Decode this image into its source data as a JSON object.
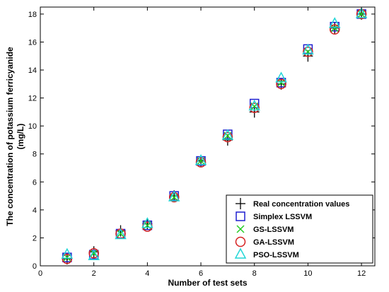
{
  "chart_data": {
    "type": "scatter",
    "title": "",
    "xlabel": "Number of test sets",
    "ylabel_line1": "The concentration of potassium ferricyanide",
    "ylabel_line2": "(mg/L)",
    "xlim": [
      0,
      12.5
    ],
    "ylim": [
      0,
      18.5
    ],
    "xticks": [
      0,
      2,
      4,
      6,
      8,
      10,
      12
    ],
    "yticks": [
      0,
      2,
      4,
      6,
      8,
      10,
      12,
      14,
      16,
      18
    ],
    "grid": false,
    "legend_position": "bottom-right",
    "x": [
      1,
      2,
      3,
      4,
      5,
      6,
      7,
      8,
      9,
      10,
      11,
      12
    ],
    "series": [
      {
        "name": "Real concentration values",
        "marker": "plus",
        "color": "#000000",
        "values": [
          0.5,
          1.0,
          2.5,
          3.0,
          5.0,
          7.5,
          9.0,
          11.0,
          13.0,
          15.0,
          17.0,
          18.0
        ]
      },
      {
        "name": "Simplex LSSVM",
        "marker": "square",
        "color": "#1f1fd0",
        "values": [
          0.6,
          0.8,
          2.3,
          2.9,
          5.0,
          7.5,
          9.4,
          11.6,
          13.1,
          15.5,
          17.1,
          18.0
        ]
      },
      {
        "name": "GS-LSSVM",
        "marker": "x",
        "color": "#22cc22",
        "values": [
          0.6,
          0.9,
          2.3,
          2.9,
          4.9,
          7.5,
          9.3,
          11.4,
          13.1,
          15.3,
          17.0,
          18.0
        ]
      },
      {
        "name": "GA-LSSVM",
        "marker": "circle",
        "color": "#d42020",
        "values": [
          0.5,
          0.9,
          2.3,
          2.8,
          4.9,
          7.4,
          9.2,
          11.3,
          13.0,
          15.3,
          16.9,
          18.0
        ]
      },
      {
        "name": "PSO-LSSVM",
        "marker": "triangle",
        "color": "#22d6d6",
        "values": [
          0.8,
          0.7,
          2.2,
          3.0,
          4.9,
          7.5,
          9.3,
          11.4,
          13.4,
          15.4,
          17.3,
          18.0
        ]
      }
    ]
  }
}
